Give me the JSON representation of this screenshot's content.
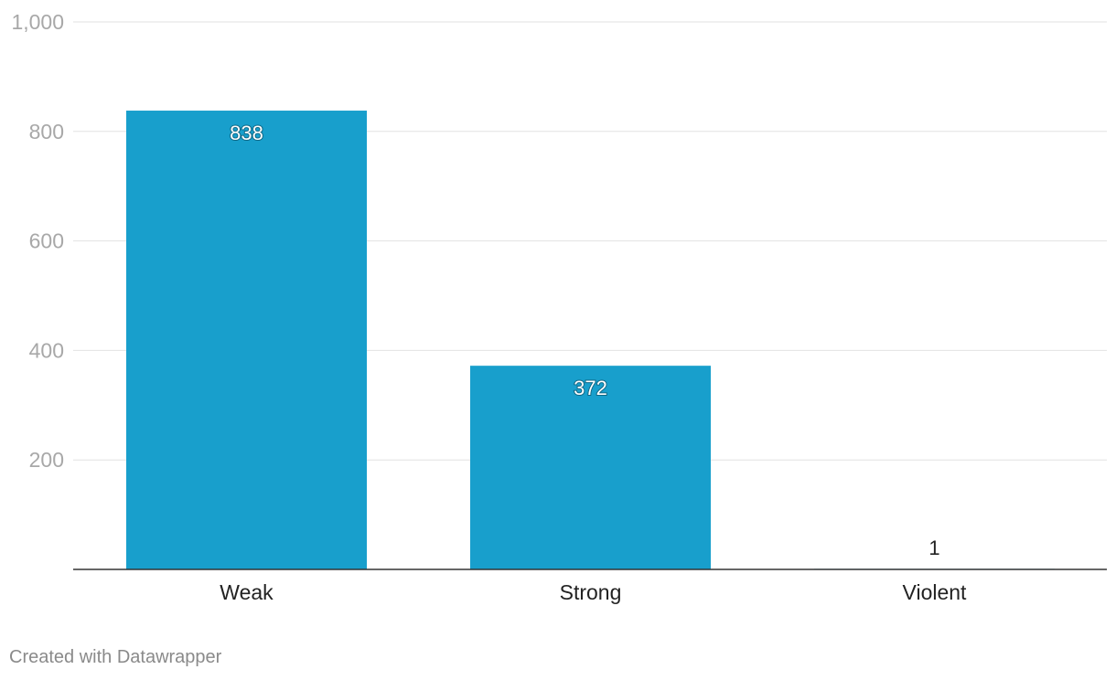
{
  "chart_data": {
    "type": "bar",
    "categories": [
      "Weak",
      "Strong",
      "Violent"
    ],
    "values": [
      838,
      372,
      1
    ],
    "ylim": [
      0,
      1000
    ],
    "yticks": [
      200,
      400,
      600,
      800,
      1000
    ],
    "ytick_labels": [
      "200",
      "400",
      "600",
      "800",
      "1,000"
    ],
    "value_labels": [
      "838",
      "372",
      "1"
    ],
    "grid": true,
    "colors": {
      "bar": "#189fcc",
      "grid": "#e2e2e2",
      "axis": "#333333"
    }
  },
  "footer": {
    "credit": "Created with Datawrapper"
  }
}
